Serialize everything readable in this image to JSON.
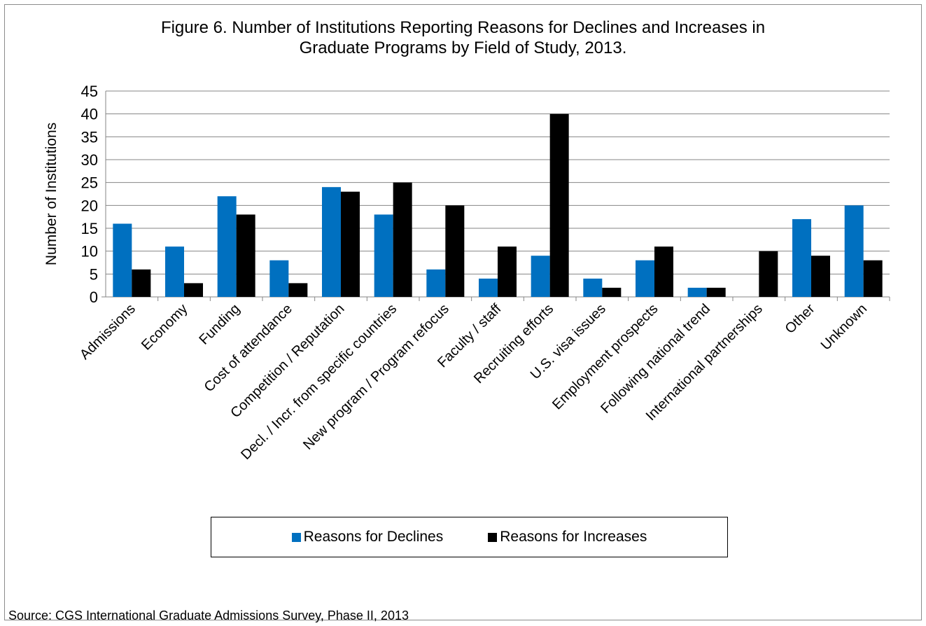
{
  "chart_data": {
    "type": "bar",
    "title_line1": "Figure 6. Number  of Institutions Reporting Reasons for Declines and Increases in",
    "title_line2": "Graduate Programs by Field of Study, 2013.",
    "ylabel": "Number of Institutions",
    "xlabel": "",
    "ylim": [
      0,
      45
    ],
    "yticks": [
      0,
      5,
      10,
      15,
      20,
      25,
      30,
      35,
      40,
      45
    ],
    "grid": true,
    "legend_position": "bottom",
    "categories": [
      "Admissions",
      "Economy",
      "Funding",
      "Cost of attendance",
      "Competition / Reputation",
      "Decl. / Incr. from specific countries",
      "New program / Program refocus",
      "Faculty / staff",
      "Recruiting efforts",
      "U.S. visa issues",
      "Employment prospects",
      "Following national trend",
      "International partnerships",
      "Other",
      "Unknown"
    ],
    "series": [
      {
        "name": "Reasons for Declines",
        "color": "#0070c0",
        "values": [
          16,
          11,
          22,
          8,
          24,
          18,
          6,
          4,
          9,
          4,
          8,
          2,
          0,
          17,
          20
        ]
      },
      {
        "name": "Reasons for Increases",
        "color": "#000000",
        "values": [
          6,
          3,
          18,
          3,
          23,
          25,
          20,
          11,
          40,
          2,
          11,
          2,
          10,
          9,
          8
        ]
      }
    ]
  },
  "source": "Source:  CGS International Graduate Admissions Survey, Phase II, 2013"
}
